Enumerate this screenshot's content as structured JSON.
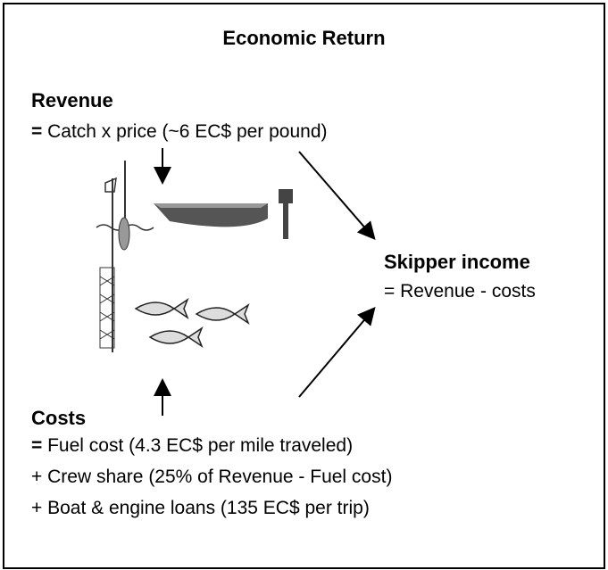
{
  "title": "Economic Return",
  "revenue": {
    "heading": "Revenue",
    "lines": [
      {
        "operator": "=",
        "text": "Catch x price (~6 EC$ per pound)"
      }
    ]
  },
  "skipper_income": {
    "heading": "Skipper income",
    "lines": [
      {
        "operator": "=",
        "text": "Revenue - costs"
      }
    ]
  },
  "costs": {
    "heading": "Costs",
    "lines": [
      {
        "operator": "=",
        "text": "Fuel cost (4.3 EC$ per mile traveled)"
      },
      {
        "operator": "+",
        "text": "Crew share (25% of Revenue - Fuel cost)"
      },
      {
        "operator": "+",
        "text": "Boat & engine loans (135 EC$ per trip)"
      }
    ]
  }
}
